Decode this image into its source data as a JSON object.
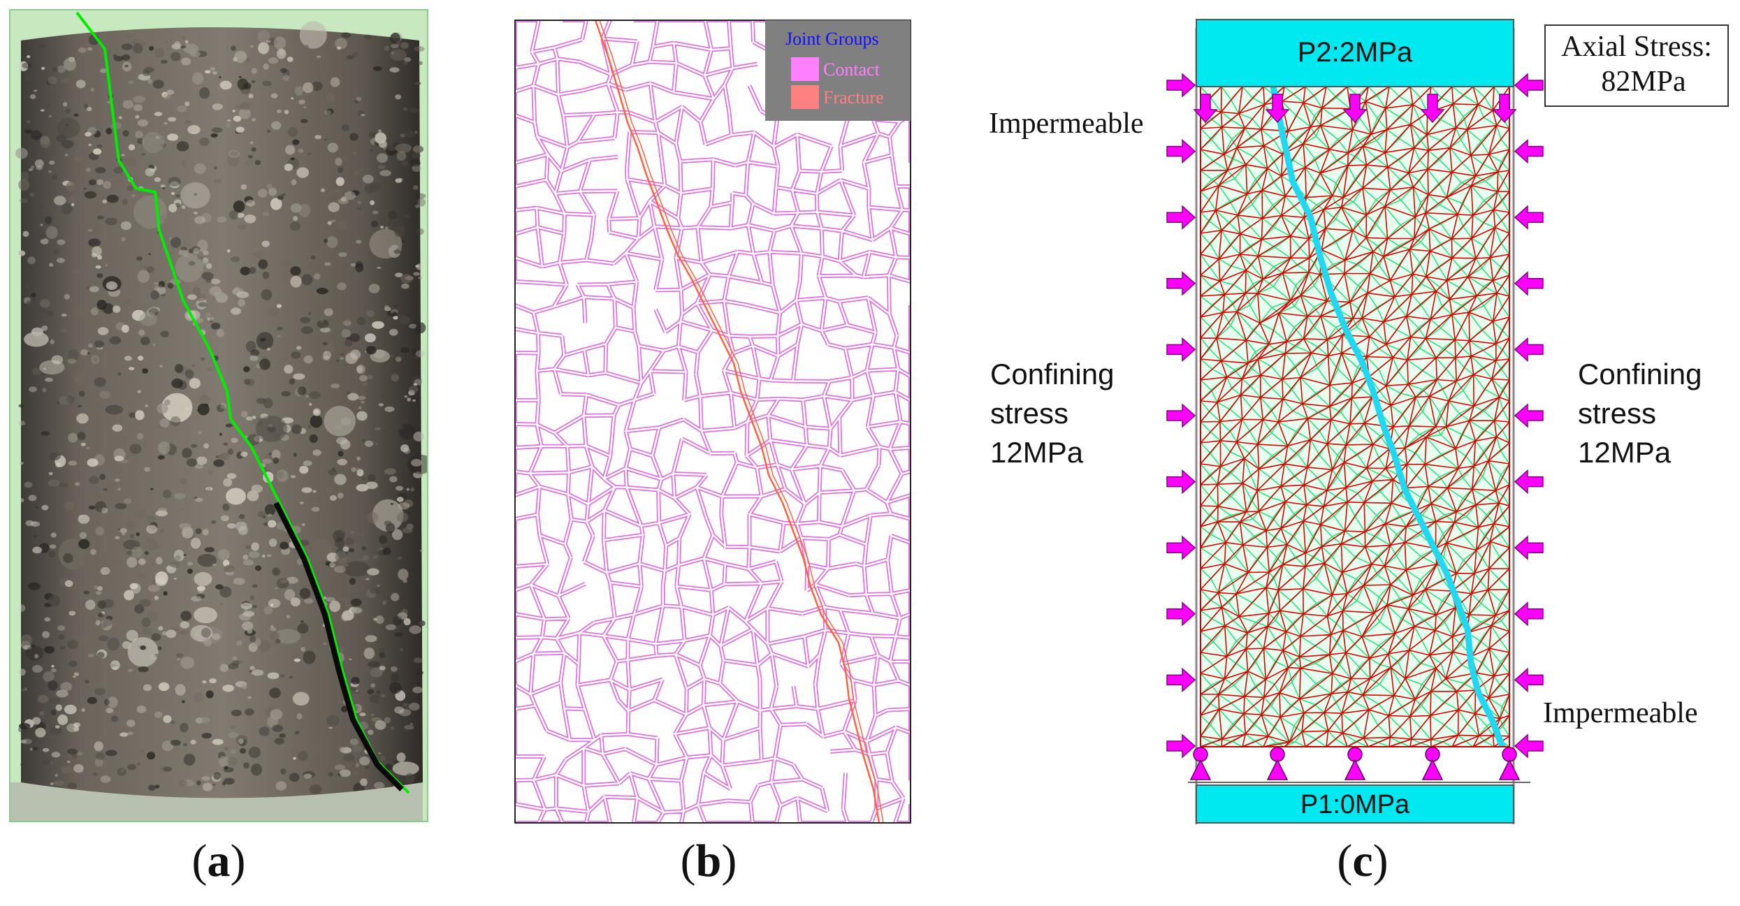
{
  "panels": {
    "a": {
      "label": "a"
    },
    "b": {
      "label": "b",
      "legend": {
        "title": "Joint Groups",
        "items": [
          {
            "name": "Contact",
            "color": "#ff80ff"
          },
          {
            "name": "Fracture",
            "color": "#ff8080"
          }
        ]
      }
    },
    "c": {
      "label": "c",
      "top_platen": "P2:2MPa",
      "bottom_platen": "P1:0MPa",
      "axial_stress_line1": "Axial Stress:",
      "axial_stress_line2": "82MPa",
      "impermeable_top": "Impermeable",
      "impermeable_bottom": "Impermeable",
      "confining_left": [
        "Confining",
        "stress",
        "12MPa"
      ],
      "confining_right": [
        "Confining",
        "stress",
        "12MPa"
      ]
    }
  },
  "colors": {
    "platen": "#00e8f0",
    "arrow": "#ff00ff",
    "mesh_edge": "#e00000",
    "mesh_flow": "#30e080",
    "fracture_c": "#20d8f0",
    "fracture_a": "#00ee00",
    "contact_b": "#e070e0",
    "fracture_b": "#ff6040",
    "rock": "#5a5550"
  }
}
